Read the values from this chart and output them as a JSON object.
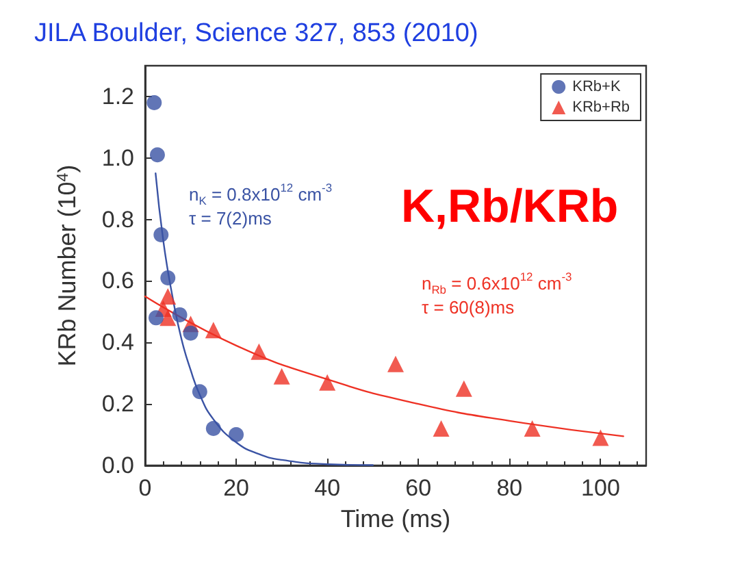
{
  "chart_data": {
    "type": "scatter",
    "title": "JILA Boulder, Science 327, 853 (2010)",
    "xlabel": "Time (ms)",
    "ylabel": "KRb Number (10$^{4}$)",
    "xlim": [
      0,
      110
    ],
    "xticks": [
      0,
      20,
      40,
      60,
      80,
      100
    ],
    "ylim": [
      0,
      1.3
    ],
    "yticks": [
      {
        "value": 0,
        "label": "0.0"
      },
      {
        "value": 0.2,
        "label": "0.2"
      },
      {
        "value": 0.4,
        "label": "0.4"
      },
      {
        "value": 0.6,
        "label": "0.6"
      },
      {
        "value": 0.8,
        "label": "0.8"
      },
      {
        "value": 1,
        "label": "1.0"
      },
      {
        "value": 1.2,
        "label": "1.2"
      }
    ],
    "grid": false,
    "legend": "top right",
    "annotations": [
      "K,Rb/KRb",
      "n$_{K}$ = 0.8x10$^{12}$ cm$^{-3}$\nτ = 7(2)ms",
      "n$_{Rb}$ = 0.6x10$^{12}$ cm$^{-3}$\nτ = 60(8)ms"
    ],
    "series": [
      {
        "name": "KRb+K",
        "marker": "circle",
        "color": "#3a53a4",
        "x": [
          2,
          2.7,
          2.4,
          3.5,
          5,
          7.6,
          10,
          12,
          15,
          20
        ],
        "values": [
          1.18,
          1.01,
          0.48,
          0.75,
          0.61,
          0.49,
          0.43,
          0.24,
          0.12,
          0.1
        ]
      },
      {
        "name": "KRb+Rb",
        "marker": "triangle",
        "color": "#ee3124",
        "x": [
          4,
          5,
          5,
          10,
          15,
          25,
          30,
          40,
          55,
          65,
          70,
          85,
          100
        ],
        "values": [
          0.51,
          0.55,
          0.48,
          0.46,
          0.44,
          0.37,
          0.29,
          0.27,
          0.33,
          0.12,
          0.25,
          0.12,
          0.09
        ]
      },
      {
        "type": "line",
        "marker": "none",
        "line_style": "solid",
        "color": "#3a53a4",
        "x": [
          2.3,
          4,
          6,
          8,
          10,
          12,
          15,
          20,
          25,
          30,
          40,
          50
        ],
        "values": [
          0.95,
          0.73,
          0.55,
          0.41,
          0.31,
          0.23,
          0.15,
          0.075,
          0.037,
          0.018,
          0.004,
          0.001
        ]
      },
      {
        "type": "line",
        "marker": "none",
        "line_style": "solid",
        "color": "#ee3124",
        "x": [
          0,
          20,
          40,
          60,
          80,
          105
        ],
        "values": [
          0.55,
          0.39,
          0.28,
          0.2,
          0.145,
          0.095
        ]
      }
    ]
  }
}
